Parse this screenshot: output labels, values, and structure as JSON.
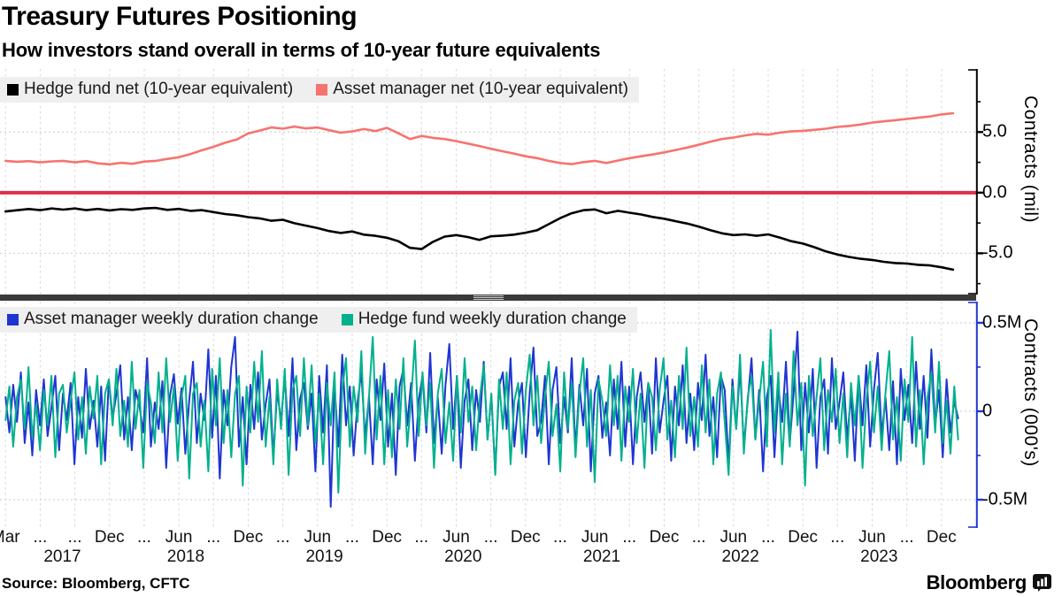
{
  "header": {
    "title": "Treasury Futures Positioning",
    "subtitle": "How investors stand overall in terms of 10-year future equivalents"
  },
  "footer": {
    "source": "Source: Bloomberg, CFTC",
    "brand": "Bloomberg",
    "brand_icon": "bloomberg-bars-icon"
  },
  "colors": {
    "hedge_net": "#000000",
    "asset_net": "#f7736f",
    "zero_line": "#e02e49",
    "asset_weekly": "#1f35d2",
    "hedge_weekly": "#00b18c",
    "grid_v": "#d6d6d6",
    "grid_h": "#c9c9c9",
    "legend_bg": "#efefef",
    "divider": "#3a3a3a",
    "axis_top": "#000000",
    "axis_bottom": "#1f35d2"
  },
  "x_axis": {
    "quarters": [
      {
        "x": 2017.17,
        "label": "Mar"
      },
      {
        "x": 2017.42,
        "label": "..."
      },
      {
        "x": 2017.67,
        "label": "..."
      },
      {
        "x": 2017.92,
        "label": "Dec"
      },
      {
        "x": 2018.17,
        "label": "..."
      },
      {
        "x": 2018.42,
        "label": "Jun"
      },
      {
        "x": 2018.67,
        "label": "..."
      },
      {
        "x": 2018.92,
        "label": "Dec"
      },
      {
        "x": 2019.17,
        "label": "..."
      },
      {
        "x": 2019.42,
        "label": "Jun"
      },
      {
        "x": 2019.67,
        "label": "..."
      },
      {
        "x": 2019.92,
        "label": "Dec"
      },
      {
        "x": 2020.17,
        "label": "..."
      },
      {
        "x": 2020.42,
        "label": "Jun"
      },
      {
        "x": 2020.67,
        "label": "..."
      },
      {
        "x": 2020.92,
        "label": "Dec"
      },
      {
        "x": 2021.17,
        "label": "..."
      },
      {
        "x": 2021.42,
        "label": "Jun"
      },
      {
        "x": 2021.67,
        "label": "..."
      },
      {
        "x": 2021.92,
        "label": "Dec"
      },
      {
        "x": 2022.17,
        "label": "..."
      },
      {
        "x": 2022.42,
        "label": "Jun"
      },
      {
        "x": 2022.67,
        "label": "..."
      },
      {
        "x": 2022.92,
        "label": "Dec"
      },
      {
        "x": 2023.17,
        "label": "..."
      },
      {
        "x": 2023.42,
        "label": "Jun"
      },
      {
        "x": 2023.67,
        "label": "..."
      },
      {
        "x": 2023.92,
        "label": "Dec"
      }
    ],
    "years": [
      {
        "x": 2017.58,
        "label": "2017"
      },
      {
        "x": 2018.47,
        "label": "2018"
      },
      {
        "x": 2019.47,
        "label": "2019"
      },
      {
        "x": 2020.47,
        "label": "2020"
      },
      {
        "x": 2021.47,
        "label": "2021"
      },
      {
        "x": 2022.47,
        "label": "2022"
      },
      {
        "x": 2023.47,
        "label": "2023"
      }
    ]
  },
  "chart_data": [
    {
      "type": "line",
      "panel": "top",
      "ylabel": "Contracts (mil)",
      "xlim": [
        2017.13,
        2024.17
      ],
      "ylim": [
        -8.4,
        10.2
      ],
      "grid": true,
      "legend_position": "top-left-inside",
      "zero_line": {
        "value": 0,
        "color_key": "zero_line",
        "width": 4
      },
      "axis_color_key": "axis_top",
      "yticks": [
        {
          "v": 7.5
        },
        {
          "v": 5.0,
          "label": "5.0"
        },
        {
          "v": 2.5
        },
        {
          "v": 0.0,
          "label": "0.0"
        },
        {
          "v": -2.5
        },
        {
          "v": -5.0,
          "label": "-5.0"
        },
        {
          "v": -7.5
        }
      ],
      "series": [
        {
          "name": "Hedge fund net (10-year equivalent)",
          "color_key": "hedge_net",
          "width": 2.6,
          "x0": 2017.17,
          "dx": 0.083333,
          "values": [
            -1.55,
            -1.45,
            -1.35,
            -1.44,
            -1.3,
            -1.4,
            -1.3,
            -1.44,
            -1.34,
            -1.46,
            -1.36,
            -1.42,
            -1.3,
            -1.26,
            -1.42,
            -1.34,
            -1.5,
            -1.44,
            -1.6,
            -1.76,
            -1.86,
            -2.02,
            -2.12,
            -2.32,
            -2.24,
            -2.52,
            -2.72,
            -2.92,
            -3.16,
            -3.32,
            -3.2,
            -3.46,
            -3.56,
            -3.72,
            -4.0,
            -4.55,
            -4.65,
            -4.05,
            -3.62,
            -3.5,
            -3.66,
            -3.9,
            -3.6,
            -3.54,
            -3.46,
            -3.3,
            -3.1,
            -2.6,
            -2.1,
            -1.7,
            -1.45,
            -1.38,
            -1.7,
            -1.5,
            -1.65,
            -1.8,
            -2.0,
            -2.15,
            -2.35,
            -2.55,
            -2.8,
            -3.1,
            -3.35,
            -3.5,
            -3.44,
            -3.56,
            -3.44,
            -3.7,
            -4.0,
            -4.2,
            -4.5,
            -4.85,
            -5.1,
            -5.3,
            -5.45,
            -5.55,
            -5.7,
            -5.8,
            -5.85,
            -5.95,
            -6.0,
            -6.15,
            -6.35
          ]
        },
        {
          "name": "Asset manager net (10-year equivalent)",
          "color_key": "asset_net",
          "width": 2.6,
          "x0": 2017.17,
          "dx": 0.083333,
          "values": [
            2.62,
            2.55,
            2.6,
            2.5,
            2.58,
            2.62,
            2.5,
            2.6,
            2.42,
            2.34,
            2.46,
            2.38,
            2.56,
            2.62,
            2.78,
            2.92,
            3.18,
            3.5,
            3.78,
            4.12,
            4.38,
            4.88,
            5.12,
            5.38,
            5.28,
            5.45,
            5.3,
            5.38,
            5.15,
            4.95,
            5.05,
            5.25,
            5.08,
            5.35,
            4.9,
            4.42,
            4.68,
            4.52,
            4.42,
            4.25,
            4.05,
            3.85,
            3.62,
            3.42,
            3.22,
            3.0,
            2.85,
            2.62,
            2.45,
            2.35,
            2.52,
            2.62,
            2.45,
            2.65,
            2.85,
            3.0,
            3.15,
            3.32,
            3.52,
            3.72,
            3.95,
            4.2,
            4.42,
            4.55,
            4.72,
            4.85,
            4.78,
            4.95,
            5.05,
            5.1,
            5.18,
            5.28,
            5.42,
            5.5,
            5.62,
            5.78,
            5.88,
            5.98,
            6.08,
            6.18,
            6.28,
            6.45,
            6.55
          ]
        }
      ]
    },
    {
      "type": "line",
      "panel": "bottom",
      "ylabel": "Contracts (000's)",
      "xlim": [
        2017.13,
        2024.17
      ],
      "ylim": [
        -0.66,
        0.62
      ],
      "grid": true,
      "legend_position": "top-left-inside",
      "axis_color_key": "axis_bottom",
      "yticks": [
        {
          "v": 0.5,
          "label": "0.5M"
        },
        {
          "v": 0.25
        },
        {
          "v": 0,
          "label": "0"
        },
        {
          "v": -0.25
        },
        {
          "v": -0.5,
          "label": "-0.5M"
        }
      ],
      "series": [
        {
          "name": "Asset manager weekly duration change",
          "color_key": "asset_weekly",
          "width": 2,
          "x0": 2017.17,
          "dx": 0.02759,
          "values": [
            0.08,
            -0.12,
            0.15,
            -0.06,
            0.22,
            -0.18,
            0.05,
            -0.25,
            0.12,
            -0.08,
            0.18,
            -0.14,
            0.02,
            0.2,
            -0.22,
            0.1,
            -0.05,
            0.16,
            -0.3,
            0.08,
            -0.15,
            0.24,
            -0.1,
            0.06,
            -0.2,
            0.14,
            -0.28,
            0.18,
            -0.04,
            0.1,
            0.26,
            -0.16,
            0.08,
            -0.22,
            0.12,
            0.03,
            -0.12,
            0.3,
            -0.2,
            0.05,
            -0.1,
            0.17,
            -0.32,
            0.09,
            0.21,
            -0.07,
            0.13,
            -0.24,
            0.06,
            0.28,
            -0.18,
            0.1,
            -0.05,
            0.35,
            -0.15,
            0.2,
            -0.38,
            0.12,
            -0.08,
            0.25,
            0.42,
            -0.2,
            0.08,
            -0.3,
            0.15,
            -0.1,
            0.22,
            -0.16,
            0.04,
            0.18,
            -0.26,
            0.12,
            -0.06,
            0.2,
            -0.14,
            0.3,
            -0.22,
            0.07,
            0.16,
            -0.1,
            0.1,
            -0.34,
            0.2,
            -0.12,
            0.26,
            -0.54,
            0.15,
            -0.2,
            0.32,
            -0.08,
            0.14,
            -0.25,
            0.05,
            0.22,
            -0.15,
            0.08,
            -0.3,
            0.18,
            -0.05,
            0.27,
            -0.2,
            0.1,
            -0.36,
            0.14,
            0.24,
            -0.08,
            0.16,
            -0.28,
            0.06,
            0.2,
            -0.12,
            0.33,
            -0.18,
            0.08,
            -0.24,
            0.15,
            0.38,
            -0.1,
            0.2,
            -0.32,
            0.06,
            0.18,
            -0.22,
            0.12,
            -0.06,
            0.28,
            -0.16,
            0.09,
            -0.35,
            0.14,
            0.22,
            -0.1,
            0.3,
            -0.2,
            0.05,
            0.16,
            -0.26,
            0.1,
            0.36,
            -0.14,
            -0.06,
            0.2,
            -0.3,
            0.12,
            0.25,
            -0.18,
            0.08,
            -0.12,
            0.3,
            -0.22,
            0.15,
            -0.08,
            0.24,
            -0.34,
            0.1,
            0.2,
            -0.15,
            0.05,
            -0.25,
            0.18,
            -0.1,
            0.28,
            -0.2,
            0.14,
            -0.3,
            0.08,
            0.22,
            -0.06,
            0.16,
            -0.24,
            0.3,
            -0.12,
            0.06,
            0.2,
            -0.28,
            0.14,
            -0.08,
            0.26,
            -0.18,
            0.1,
            -0.22,
            0.16,
            -0.05,
            0.32,
            -0.14,
            0.08,
            -0.26,
            0.2,
            0.12,
            -0.3,
            0.18,
            -0.1,
            0.25,
            -0.2,
            0.06,
            0.3,
            -0.16,
            0.12,
            -0.34,
            0.08,
            0.2,
            -0.26,
            0.14,
            -0.06,
            0.28,
            -0.18,
            0.1,
            0.45,
            -0.22,
            0.16,
            -0.12,
            0.24,
            -0.32,
            0.08,
            0.18,
            -0.24,
            0.3,
            -0.1,
            0.05,
            0.22,
            -0.16,
            0.1,
            -0.28,
            0.2,
            -0.08,
            0.26,
            -0.2,
            0.12,
            0.33,
            -0.14,
            0.08,
            -0.22,
            0.17,
            -0.3,
            0.24,
            -0.05,
            0.15,
            -0.18,
            0.28,
            -0.1,
            0.2,
            -0.15,
            0.35,
            -0.08,
            0.12,
            -0.26,
            0.18,
            -0.12,
            0.06,
            -0.04
          ]
        },
        {
          "name": "Hedge fund weekly duration change",
          "color_key": "hedge_weekly",
          "width": 2,
          "x0": 2017.17,
          "dx": 0.02759,
          "values": [
            -0.05,
            0.14,
            -0.2,
            0.08,
            0.18,
            -0.1,
            0.25,
            -0.15,
            0.04,
            -0.22,
            0.12,
            -0.08,
            0.2,
            -0.26,
            0.1,
            0.15,
            -0.12,
            0.06,
            0.22,
            -0.16,
            0.08,
            -0.24,
            0.14,
            -0.04,
            0.2,
            -0.3,
            0.1,
            0.18,
            -0.08,
            0.24,
            -0.14,
            0.06,
            -0.2,
            0.28,
            -0.1,
            0.12,
            -0.32,
            0.16,
            0.05,
            -0.18,
            0.22,
            -0.12,
            0.3,
            -0.06,
            0.14,
            -0.28,
            0.08,
            0.2,
            -0.38,
            0.1,
            0.16,
            -0.2,
            0.06,
            -0.34,
            0.24,
            -0.08,
            0.3,
            -0.18,
            0.12,
            -0.26,
            0.1,
            0.2,
            -0.42,
            0.14,
            -0.12,
            0.28,
            -0.06,
            0.34,
            -0.2,
            0.08,
            -0.3,
            0.18,
            -0.1,
            0.24,
            -0.36,
            0.12,
            0.2,
            -0.14,
            0.3,
            -0.08,
            0.26,
            -0.18,
            0.1,
            -0.3,
            0.16,
            -0.08,
            0.22,
            -0.46,
            0.12,
            0.3,
            -0.2,
            0.14,
            -0.06,
            0.34,
            -0.24,
            0.08,
            0.42,
            -0.16,
            0.2,
            -0.3,
            0.12,
            -0.26,
            0.18,
            -0.1,
            0.3,
            -0.2,
            0.06,
            0.4,
            -0.14,
            0.22,
            -0.08,
            0.16,
            -0.32,
            0.1,
            0.24,
            -0.18,
            0.05,
            -0.28,
            0.2,
            -0.12,
            0.3,
            -0.06,
            0.14,
            -0.22,
            0.08,
            0.26,
            -0.16,
            0.1,
            -0.36,
            0.18,
            -0.1,
            0.22,
            -0.3,
            0.06,
            0.16,
            -0.24,
            0.12,
            0.32,
            -0.08,
            0.2,
            -0.18,
            0.08,
            0.28,
            -0.14,
            0.04,
            -0.34,
            0.22,
            -0.1,
            0.16,
            -0.26,
            0.1,
            0.3,
            -0.2,
            0.12,
            -0.4,
            0.18,
            0.06,
            -0.14,
            0.26,
            -0.08,
            0.2,
            -0.28,
            0.14,
            -0.06,
            0.24,
            -0.18,
            0.1,
            -0.32,
            0.16,
            0.08,
            -0.22,
            0.12,
            0.3,
            -0.16,
            0.06,
            -0.26,
            0.2,
            -0.1,
            0.36,
            -0.14,
            0.08,
            -0.2,
            0.26,
            -0.12,
            0.18,
            -0.3,
            0.1,
            0.22,
            -0.06,
            -0.36,
            0.14,
            -0.1,
            0.32,
            -0.24,
            0.08,
            0.2,
            -0.16,
            0.06,
            0.28,
            -0.2,
            0.46,
            -0.12,
            0.22,
            -0.3,
            0.1,
            -0.2,
            0.34,
            -0.08,
            0.16,
            -0.42,
            0.2,
            -0.14,
            0.08,
            0.3,
            -0.22,
            0.12,
            -0.06,
            0.24,
            -0.18,
            0.1,
            -0.26,
            0.16,
            -0.08,
            0.2,
            -0.32,
            0.06,
            0.28,
            -0.12,
            0.14,
            -0.22,
            0.1,
            0.34,
            -0.16,
            0.08,
            -0.28,
            0.18,
            -0.06,
            0.42,
            -0.2,
            0.12,
            -0.3,
            0.08,
            0.22,
            -0.12,
            0.28,
            -0.18,
            0.06,
            -0.24,
            0.14,
            -0.16
          ]
        }
      ]
    }
  ]
}
